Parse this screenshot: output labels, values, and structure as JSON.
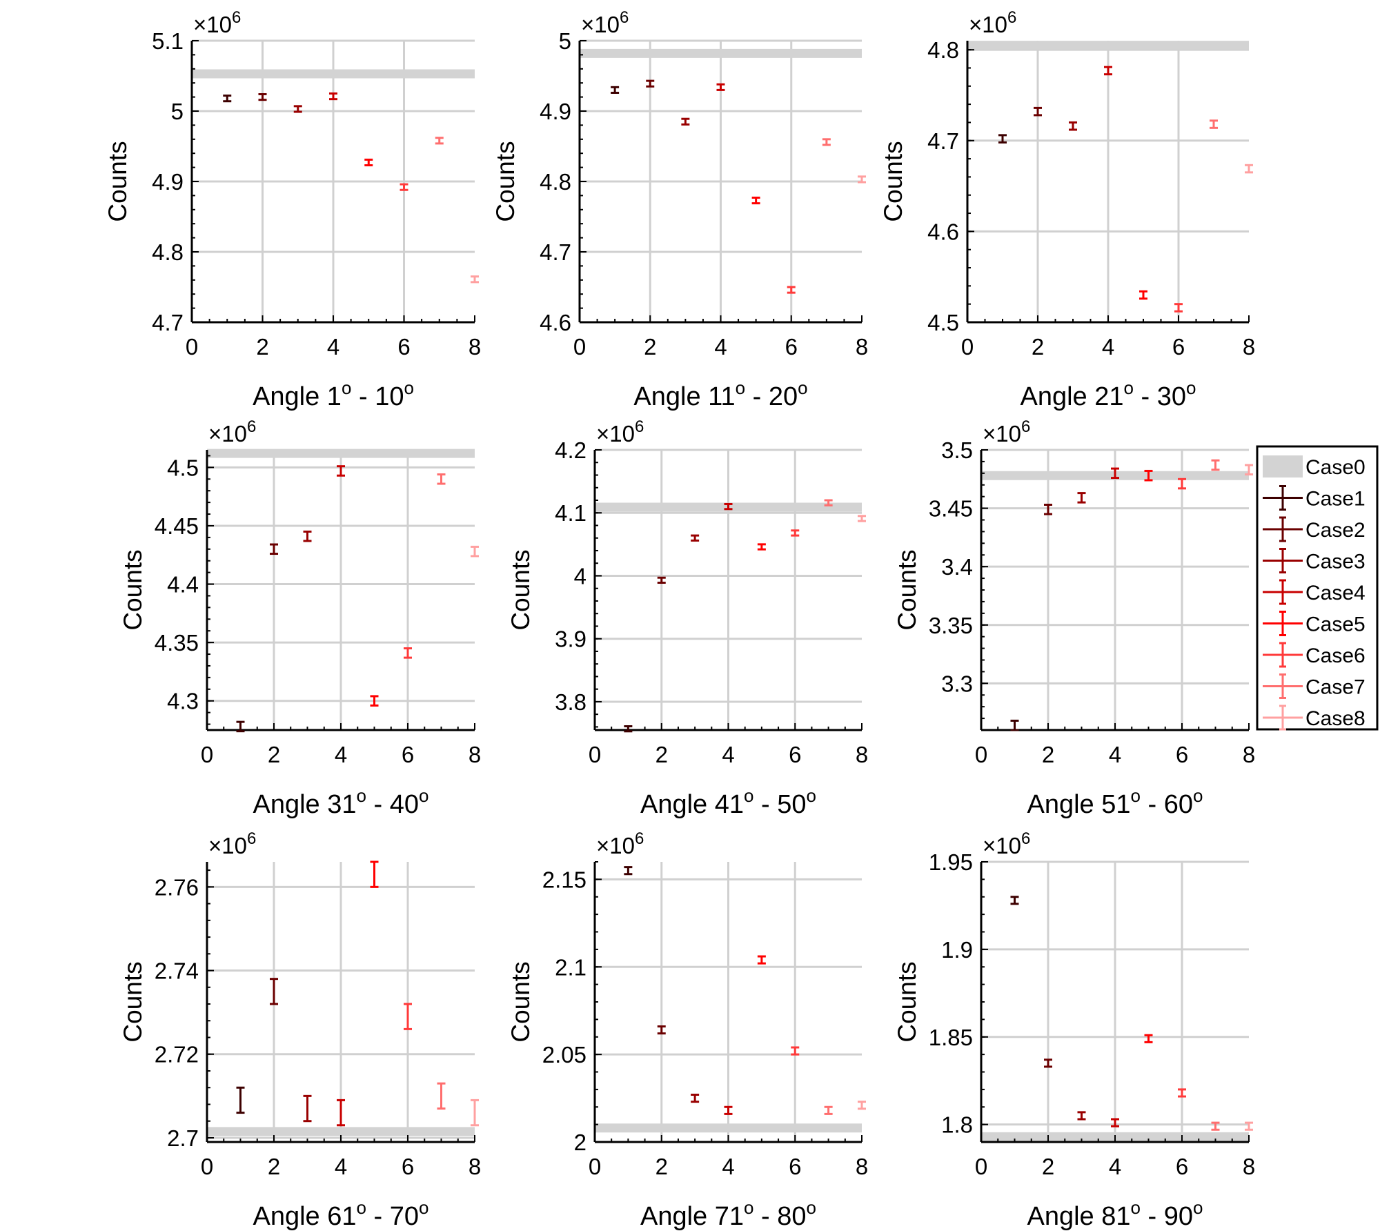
{
  "y_label": "Counts",
  "x_ticks": [
    "0",
    "2",
    "4",
    "6",
    "8"
  ],
  "exponent_prefix": "×",
  "exponent_base": "10",
  "exponent_power": "6",
  "legend": [
    {
      "label": "Case0",
      "kind": "band",
      "color": "#d3d3d3"
    },
    {
      "label": "Case1",
      "kind": "errorbar",
      "color": "#3d0000"
    },
    {
      "label": "Case2",
      "kind": "errorbar",
      "color": "#6b0000"
    },
    {
      "label": "Case3",
      "kind": "errorbar",
      "color": "#990000"
    },
    {
      "label": "Case4",
      "kind": "errorbar",
      "color": "#c80000"
    },
    {
      "label": "Case5",
      "kind": "errorbar",
      "color": "#ff0000"
    },
    {
      "label": "Case6",
      "kind": "errorbar",
      "color": "#ff3a3a"
    },
    {
      "label": "Case7",
      "kind": "errorbar",
      "color": "#ff6e6e"
    },
    {
      "label": "Case8",
      "kind": "errorbar",
      "color": "#ffa0a0"
    }
  ],
  "chart_data": [
    {
      "type": "scatter",
      "xlabel": {
        "pre": "Angle 1",
        "mid": " - 10",
        "sup": "o"
      },
      "ylim": [
        4.7,
        5.1
      ],
      "yticks": [
        "4.7",
        "4.8",
        "4.9",
        "5",
        "5.1"
      ],
      "case0": 5.053,
      "points": [
        [
          1,
          5.018,
          0.004
        ],
        [
          2,
          5.02,
          0.004
        ],
        [
          3,
          5.003,
          0.004
        ],
        [
          4,
          5.021,
          0.004
        ],
        [
          5,
          4.927,
          0.004
        ],
        [
          6,
          4.892,
          0.004
        ],
        [
          7,
          4.958,
          0.004
        ],
        [
          8,
          4.761,
          0.004
        ]
      ]
    },
    {
      "type": "scatter",
      "xlabel": {
        "pre": "Angle 11",
        "mid": " - 20",
        "sup": "o"
      },
      "ylim": [
        4.6,
        5.0
      ],
      "yticks": [
        "4.6",
        "4.7",
        "4.8",
        "4.9",
        "5"
      ],
      "case0": 4.982,
      "points": [
        [
          1,
          4.93,
          0.004
        ],
        [
          2,
          4.939,
          0.004
        ],
        [
          3,
          4.885,
          0.004
        ],
        [
          4,
          4.934,
          0.004
        ],
        [
          5,
          4.773,
          0.004
        ],
        [
          6,
          4.646,
          0.004
        ],
        [
          7,
          4.856,
          0.004
        ],
        [
          8,
          4.803,
          0.004
        ]
      ]
    },
    {
      "type": "scatter",
      "xlabel": {
        "pre": "Angle 21",
        "mid": " - 30",
        "sup": "o"
      },
      "ylim": [
        4.5,
        4.81
      ],
      "yticks": [
        "4.5",
        "4.6",
        "4.7",
        "4.8"
      ],
      "case0": 4.805,
      "points": [
        [
          1,
          4.702,
          0.004
        ],
        [
          2,
          4.732,
          0.004
        ],
        [
          3,
          4.716,
          0.004
        ],
        [
          4,
          4.777,
          0.004
        ],
        [
          5,
          4.53,
          0.004
        ],
        [
          6,
          4.516,
          0.004
        ],
        [
          7,
          4.718,
          0.004
        ],
        [
          8,
          4.669,
          0.004
        ]
      ]
    },
    {
      "type": "scatter",
      "xlabel": {
        "pre": "Angle 31",
        "mid": " - 40",
        "sup": "o"
      },
      "ylim": [
        4.275,
        4.515
      ],
      "yticks": [
        "4.3",
        "4.35",
        "4.4",
        "4.45",
        "4.5"
      ],
      "case0": 4.512,
      "points": [
        [
          1,
          4.278,
          0.004
        ],
        [
          2,
          4.43,
          0.004
        ],
        [
          3,
          4.441,
          0.004
        ],
        [
          4,
          4.497,
          0.004
        ],
        [
          5,
          4.3,
          0.004
        ],
        [
          6,
          4.341,
          0.004
        ],
        [
          7,
          4.49,
          0.004
        ],
        [
          8,
          4.428,
          0.004
        ]
      ]
    },
    {
      "type": "scatter",
      "xlabel": {
        "pre": "Angle 41",
        "mid": " - 50",
        "sup": "o"
      },
      "ylim": [
        3.755,
        4.2
      ],
      "yticks": [
        "3.8",
        "3.9",
        "4",
        "4.1",
        "4.2"
      ],
      "case0": 4.109,
      "points": [
        [
          1,
          3.757,
          0.004
        ],
        [
          2,
          3.993,
          0.004
        ],
        [
          3,
          4.06,
          0.004
        ],
        [
          4,
          4.11,
          0.004
        ],
        [
          5,
          4.046,
          0.004
        ],
        [
          6,
          4.068,
          0.004
        ],
        [
          7,
          4.116,
          0.004
        ],
        [
          8,
          4.091,
          0.004
        ]
      ]
    },
    {
      "type": "scatter",
      "xlabel": {
        "pre": "Angle 51",
        "mid": " - 60",
        "sup": "o"
      },
      "ylim": [
        3.26,
        3.5
      ],
      "yticks": [
        "3.3",
        "3.35",
        "3.4",
        "3.45",
        "3.5"
      ],
      "case0": 3.478,
      "points": [
        [
          1,
          3.264,
          0.004
        ],
        [
          2,
          3.449,
          0.004
        ],
        [
          3,
          3.459,
          0.004
        ],
        [
          4,
          3.48,
          0.004
        ],
        [
          5,
          3.478,
          0.004
        ],
        [
          6,
          3.471,
          0.004
        ],
        [
          7,
          3.487,
          0.004
        ],
        [
          8,
          3.483,
          0.004
        ]
      ]
    },
    {
      "type": "scatter",
      "xlabel": {
        "pre": "Angle 61",
        "mid": " - 70",
        "sup": "o"
      },
      "ylim": [
        2.699,
        2.766
      ],
      "yticks": [
        "2.7",
        "2.72",
        "2.74",
        "2.76"
      ],
      "case0": 2.7015,
      "points": [
        [
          1,
          2.709,
          0.003
        ],
        [
          2,
          2.735,
          0.003
        ],
        [
          3,
          2.707,
          0.003
        ],
        [
          4,
          2.706,
          0.003
        ],
        [
          5,
          2.763,
          0.003
        ],
        [
          6,
          2.729,
          0.003
        ],
        [
          7,
          2.71,
          0.003
        ],
        [
          8,
          2.706,
          0.003
        ]
      ]
    },
    {
      "type": "scatter",
      "xlabel": {
        "pre": "Angle 71",
        "mid": " - 80",
        "sup": "o"
      },
      "ylim": [
        2.0,
        2.16
      ],
      "yticks": [
        "2",
        "2.05",
        "2.1",
        "2.15"
      ],
      "case0": 2.008,
      "points": [
        [
          1,
          2.155,
          0.002
        ],
        [
          2,
          2.064,
          0.002
        ],
        [
          3,
          2.025,
          0.002
        ],
        [
          4,
          2.018,
          0.002
        ],
        [
          5,
          2.104,
          0.002
        ],
        [
          6,
          2.052,
          0.002
        ],
        [
          7,
          2.018,
          0.002
        ],
        [
          8,
          2.021,
          0.002
        ]
      ]
    },
    {
      "type": "scatter",
      "xlabel": {
        "pre": "Angle 81",
        "mid": " - 90",
        "sup": "o"
      },
      "ylim": [
        1.79,
        1.95
      ],
      "yticks": [
        "1.8",
        "1.85",
        "1.9",
        "1.95"
      ],
      "case0": 1.793,
      "points": [
        [
          1,
          1.928,
          0.002
        ],
        [
          2,
          1.835,
          0.002
        ],
        [
          3,
          1.805,
          0.002
        ],
        [
          4,
          1.801,
          0.002
        ],
        [
          5,
          1.849,
          0.002
        ],
        [
          6,
          1.818,
          0.002
        ],
        [
          7,
          1.799,
          0.002
        ],
        [
          8,
          1.799,
          0.002
        ]
      ]
    }
  ]
}
